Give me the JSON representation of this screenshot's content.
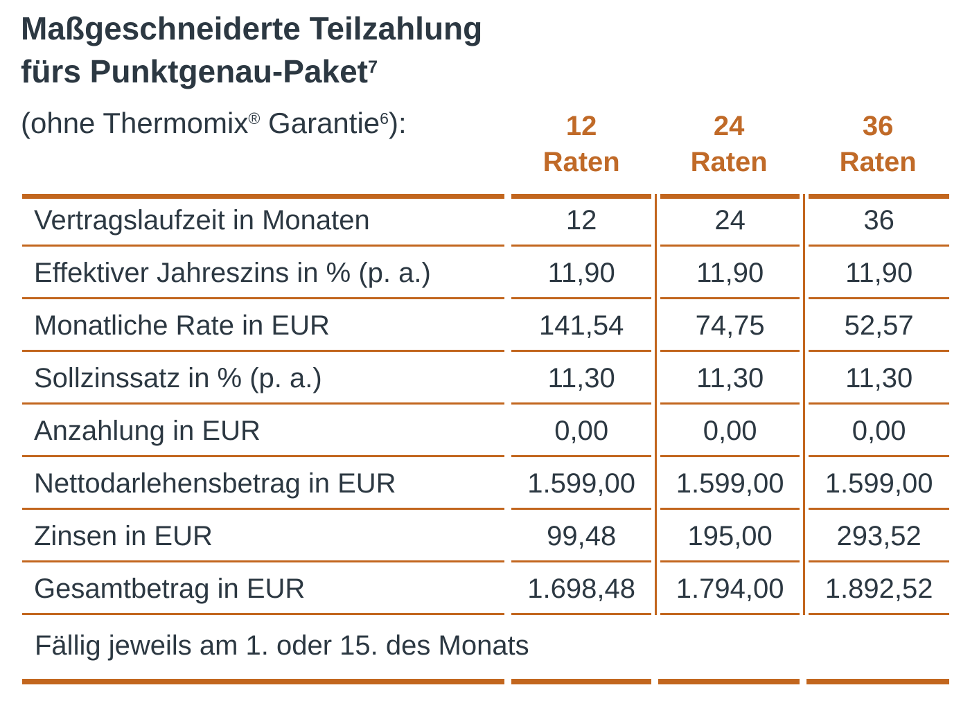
{
  "colors": {
    "text_dark": "#2C3842",
    "accent_orange_border": "#C2661E",
    "accent_orange_text": "#C06A28"
  },
  "title": {
    "line1": "Maßgeschneiderte Teilzahlung",
    "line2": "fürs Punktgenau-Paket",
    "line2_sup": "7"
  },
  "subtitle": {
    "pre": "(ohne Thermomix",
    "sup_reg": "®",
    "mid": " Garantie",
    "sup_6": "6",
    "post": "):"
  },
  "columns": [
    {
      "number": "12",
      "label": "Raten"
    },
    {
      "number": "24",
      "label": "Raten"
    },
    {
      "number": "36",
      "label": "Raten"
    }
  ],
  "rows": [
    {
      "label": "Vertragslaufzeit in Monaten",
      "values": [
        "12",
        "24",
        "36"
      ]
    },
    {
      "label": "Effektiver Jahreszins in % (p. a.)",
      "values": [
        "11,90",
        "11,90",
        "11,90"
      ]
    },
    {
      "label": "Monatliche Rate in EUR",
      "values": [
        "141,54",
        "74,75",
        "52,57"
      ]
    },
    {
      "label": "Sollzinssatz in % (p. a.)",
      "values": [
        "11,30",
        "11,30",
        "11,30"
      ]
    },
    {
      "label": "Anzahlung in EUR",
      "values": [
        "0,00",
        "0,00",
        "0,00"
      ]
    },
    {
      "label": "Nettodarlehensbetrag in EUR",
      "values": [
        "1.599,00",
        "1.599,00",
        "1.599,00"
      ]
    },
    {
      "label": "Zinsen in EUR",
      "values": [
        "99,48",
        "195,00",
        "293,52"
      ]
    },
    {
      "label": "Gesamtbetrag in EUR",
      "values": [
        "1.698,48",
        "1.794,00",
        "1.892,52"
      ]
    }
  ],
  "footer": "Fällig jeweils am 1. oder 15. des Monats"
}
